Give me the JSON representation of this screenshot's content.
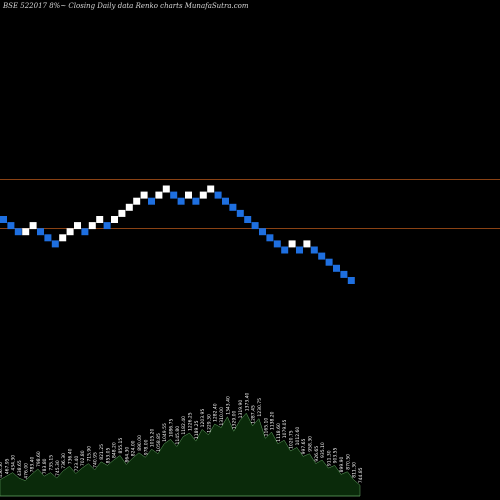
{
  "chart_data": {
    "type": "renko",
    "title": "BSE 522017 8%~   Closing Daily data  Renko  charts MunafaSutra.com",
    "colors": {
      "background": "#000000",
      "up_brick": "#ffffff",
      "down_brick": "#1e6fe0",
      "reference_line": "#b8591b",
      "volume_fill": "#0a2a0a",
      "volume_edge": "#66aa66",
      "text": "#d8d8d8"
    },
    "bricks": [
      {
        "dir": "down",
        "level": 0
      },
      {
        "dir": "down",
        "level": -1
      },
      {
        "dir": "down",
        "level": -2
      },
      {
        "dir": "up",
        "level": -2
      },
      {
        "dir": "up",
        "level": -1
      },
      {
        "dir": "down",
        "level": -2
      },
      {
        "dir": "down",
        "level": -3
      },
      {
        "dir": "down",
        "level": -4
      },
      {
        "dir": "up",
        "level": -3
      },
      {
        "dir": "up",
        "level": -2
      },
      {
        "dir": "up",
        "level": -1
      },
      {
        "dir": "down",
        "level": -2
      },
      {
        "dir": "up",
        "level": -1
      },
      {
        "dir": "up",
        "level": 0
      },
      {
        "dir": "down",
        "level": -1
      },
      {
        "dir": "up",
        "level": 0
      },
      {
        "dir": "up",
        "level": 1
      },
      {
        "dir": "up",
        "level": 2
      },
      {
        "dir": "up",
        "level": 3
      },
      {
        "dir": "up",
        "level": 4
      },
      {
        "dir": "down",
        "level": 3
      },
      {
        "dir": "up",
        "level": 4
      },
      {
        "dir": "up",
        "level": 5
      },
      {
        "dir": "down",
        "level": 4
      },
      {
        "dir": "down",
        "level": 3
      },
      {
        "dir": "up",
        "level": 4
      },
      {
        "dir": "down",
        "level": 3
      },
      {
        "dir": "up",
        "level": 4
      },
      {
        "dir": "up",
        "level": 5
      },
      {
        "dir": "down",
        "level": 4
      },
      {
        "dir": "down",
        "level": 3
      },
      {
        "dir": "down",
        "level": 2
      },
      {
        "dir": "down",
        "level": 1
      },
      {
        "dir": "down",
        "level": 0
      },
      {
        "dir": "down",
        "level": -1
      },
      {
        "dir": "down",
        "level": -2
      },
      {
        "dir": "down",
        "level": -3
      },
      {
        "dir": "down",
        "level": -4
      },
      {
        "dir": "down",
        "level": -5
      },
      {
        "dir": "up",
        "level": -4
      },
      {
        "dir": "down",
        "level": -5
      },
      {
        "dir": "up",
        "level": -4
      },
      {
        "dir": "down",
        "level": -5
      },
      {
        "dir": "down",
        "level": -6
      },
      {
        "dir": "down",
        "level": -7
      },
      {
        "dir": "down",
        "level": -8
      },
      {
        "dir": "down",
        "level": -9
      },
      {
        "dir": "down",
        "level": -10
      }
    ],
    "reference_lines": [
      "upper",
      "lower"
    ],
    "volume": [
      {
        "value": 18,
        "label": "456.50"
      },
      {
        "value": 22,
        "label": "467.95"
      },
      {
        "value": 26,
        "label": "434.30"
      },
      {
        "value": 20,
        "label": "438.65"
      },
      {
        "value": 17,
        "label": "476.00"
      },
      {
        "value": 24,
        "label": "783.40"
      },
      {
        "value": 30,
        "label": "798.60"
      },
      {
        "value": 22,
        "label": "783.80"
      },
      {
        "value": 26,
        "label": "735.15"
      },
      {
        "value": 20,
        "label": "745.30"
      },
      {
        "value": 28,
        "label": "736.30"
      },
      {
        "value": 33,
        "label": "736.40"
      },
      {
        "value": 25,
        "label": "723.40"
      },
      {
        "value": 31,
        "label": "702.80"
      },
      {
        "value": 36,
        "label": "715.90"
      },
      {
        "value": 29,
        "label": "740.95"
      },
      {
        "value": 38,
        "label": "821.25"
      },
      {
        "value": 34,
        "label": "853.05"
      },
      {
        "value": 40,
        "label": "848.20"
      },
      {
        "value": 45,
        "label": "855.15"
      },
      {
        "value": 35,
        "label": "864.30"
      },
      {
        "value": 42,
        "label": "824.00"
      },
      {
        "value": 48,
        "label": "890.00"
      },
      {
        "value": 43,
        "label": "978.00"
      },
      {
        "value": 52,
        "label": "1015.20"
      },
      {
        "value": 47,
        "label": "1058.85"
      },
      {
        "value": 58,
        "label": "1049.55"
      },
      {
        "value": 63,
        "label": "1086.75"
      },
      {
        "value": 55,
        "label": "1145.80"
      },
      {
        "value": 66,
        "label": "1182.40"
      },
      {
        "value": 70,
        "label": "1226.25"
      },
      {
        "value": 61,
        "label": "1189.25"
      },
      {
        "value": 74,
        "label": "1203.95"
      },
      {
        "value": 68,
        "label": "1229.30"
      },
      {
        "value": 80,
        "label": "1282.40"
      },
      {
        "value": 76,
        "label": "1310.00"
      },
      {
        "value": 88,
        "label": "1343.40"
      },
      {
        "value": 72,
        "label": "1329.00"
      },
      {
        "value": 84,
        "label": "1319.90"
      },
      {
        "value": 92,
        "label": "1373.40"
      },
      {
        "value": 78,
        "label": "1287.45"
      },
      {
        "value": 86,
        "label": "1230.75"
      },
      {
        "value": 64,
        "label": "1165.10"
      },
      {
        "value": 71,
        "label": "1138.20"
      },
      {
        "value": 58,
        "label": "1118.60"
      },
      {
        "value": 62,
        "label": "1079.05"
      },
      {
        "value": 50,
        "label": "1020.75"
      },
      {
        "value": 54,
        "label": "1012.60"
      },
      {
        "value": 44,
        "label": "997.65"
      },
      {
        "value": 47,
        "label": "958.30"
      },
      {
        "value": 36,
        "label": "926.65"
      },
      {
        "value": 40,
        "label": "935.10"
      },
      {
        "value": 31,
        "label": "911.30"
      },
      {
        "value": 34,
        "label": "903.55"
      },
      {
        "value": 24,
        "label": "899.90"
      },
      {
        "value": 27,
        "label": "870.50"
      },
      {
        "value": 18,
        "label": "811.30"
      },
      {
        "value": 12,
        "label": "744.85"
      }
    ]
  }
}
